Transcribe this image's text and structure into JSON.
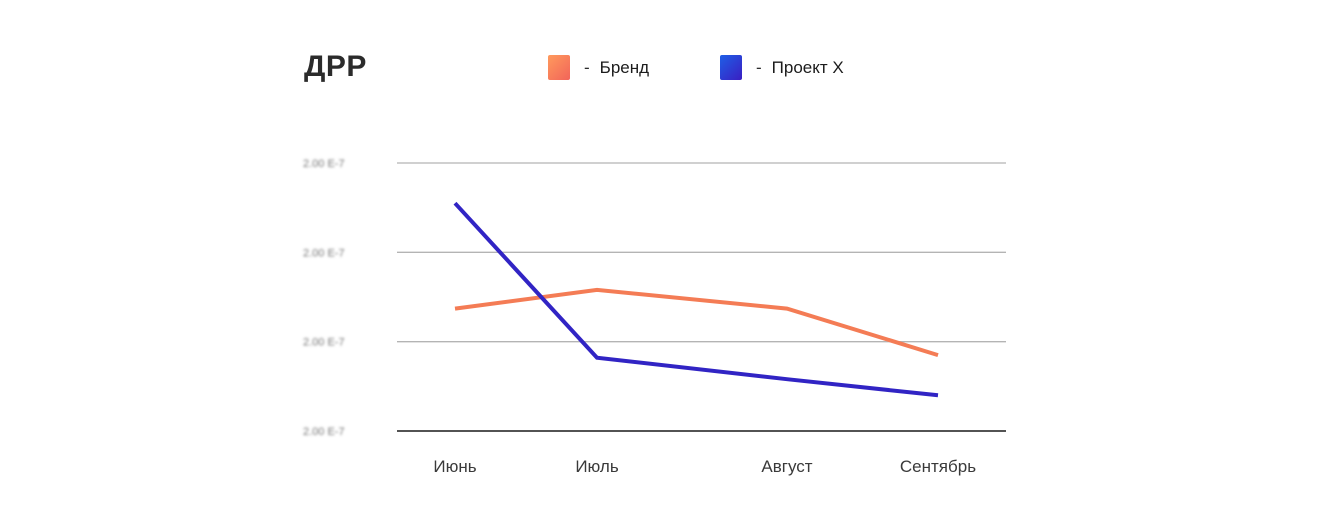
{
  "chart_data": {
    "type": "line",
    "title": "ДРР",
    "categories": [
      "Июнь",
      "Июль",
      "Август",
      "Сентябрь"
    ],
    "series": [
      {
        "name": "Бренд",
        "color": "#f47c55",
        "values": [
          1.37,
          1.58,
          1.37,
          0.85
        ]
      },
      {
        "name": "Проект X",
        "color": "#3124c4",
        "values": [
          2.55,
          0.82,
          0.58,
          0.4
        ]
      }
    ],
    "yticks": [
      "2.00 E-7",
      "2.00 E-7",
      "2.00 E-7",
      "2.00 E-7"
    ],
    "ylim": [
      0,
      3
    ],
    "grid": true,
    "legend_position": "top"
  },
  "legend_dash": "-"
}
